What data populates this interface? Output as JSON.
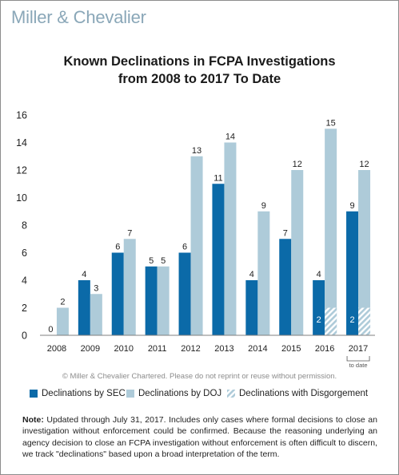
{
  "brand": "Miller & Chevalier",
  "chart_data": {
    "type": "bar",
    "title_line1": "Known Declinations in FCPA Investigations",
    "title_line2": "from 2008 to 2017 To Date",
    "categories": [
      "2008",
      "2009",
      "2010",
      "2011",
      "2012",
      "2013",
      "2014",
      "2015",
      "2016",
      "2017"
    ],
    "category_note": "to date",
    "series": [
      {
        "name": "Declinations by SEC",
        "color": "#0b6aa8",
        "values": [
          0,
          4,
          6,
          5,
          6,
          11,
          4,
          7,
          4,
          9
        ]
      },
      {
        "name": "Declinations by DOJ",
        "color": "#aecbd9",
        "values": [
          2,
          3,
          7,
          5,
          13,
          14,
          9,
          12,
          15,
          12
        ]
      }
    ],
    "disgorgement": {
      "name": "Declinations with Disgorgement",
      "values": [
        0,
        0,
        0,
        0,
        0,
        0,
        0,
        0,
        2,
        2
      ]
    },
    "ylim": [
      0,
      16
    ],
    "yticks": [
      0,
      2,
      4,
      6,
      8,
      10,
      12,
      14,
      16
    ],
    "grid": false,
    "legend_position": "bottom"
  },
  "copyright": "© Miller & Chevalier Chartered. Please do not reprint or reuse without permission.",
  "note": {
    "label": "Note:",
    "text": " Updated through July 31, 2017. Includes only cases where formal decisions to close an investigation without enforcement could be confirmed. Because the reasoning underlying an agency decision to close an FCPA investigation without enforcement is often difficult to discern, we track \"declinations\" based upon a broad interpretation of the term."
  }
}
